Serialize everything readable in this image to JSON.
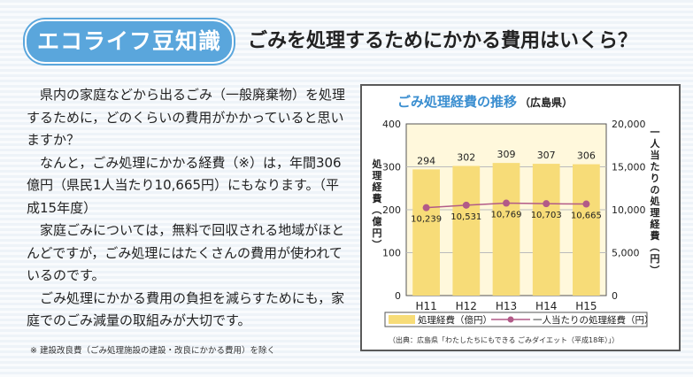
{
  "badge": "エコライフ豆知識",
  "headline": "ごみを処理するためにかかる費用はいくら？",
  "paragraphs": [
    "県内の家庭などから出るごみ（一般廃棄物）を処理するために，どのくらいの費用がかかっていると思いますか？",
    "なんと，ごみ処理にかかる経費（※）は，年間306億円（県民1人当たり10,665円）にもなります。（平成15年度）",
    "家庭ごみについては，無料で回収される地域がほとんどですが，ごみ処理にはたくさんの費用が使われているのです。",
    "ごみ処理にかかる費用の負担を減らすためにも，家庭でのごみ減量の取組みが大切です。"
  ],
  "footnote": "※ 建設改良費（ごみ処理施設の建設・改良にかかる費用）を除く",
  "colors": {
    "accent": "#5aa6dc",
    "bar": "#f7dc78",
    "line": "#b25a88",
    "plot_bg": "#fff8dc",
    "title": "#3a8ed0"
  },
  "chart_data": {
    "type": "bar",
    "title": "ごみ処理経費の推移",
    "subtitle": "（広島県）",
    "categories": [
      "H11",
      "H12",
      "H13",
      "H14",
      "H15"
    ],
    "ylabel_left": "処理経費（億円）",
    "ylabel_right": "一人当たりの処理経費（円）",
    "ylim_left": [
      0,
      400
    ],
    "ylim_right": [
      0,
      20000
    ],
    "yticks_left": [
      "0",
      "100",
      "200",
      "300",
      "400"
    ],
    "yticks_right": [
      "0",
      "5,000",
      "10,000",
      "15,000",
      "20,000"
    ],
    "series": [
      {
        "name": "処理経費（億円）",
        "kind": "bar",
        "axis": "left",
        "values": [
          294,
          302,
          309,
          307,
          306
        ],
        "labels": [
          "294",
          "302",
          "309",
          "307",
          "306"
        ]
      },
      {
        "name": "一人当たりの処理経費（円）",
        "kind": "line",
        "axis": "right",
        "values": [
          10239,
          10531,
          10769,
          10703,
          10665
        ],
        "labels": [
          "10,239",
          "10,531",
          "10,769",
          "10,703",
          "10,665"
        ]
      }
    ],
    "grid": true,
    "legend": "bottom",
    "source": "（出典：広島県「わたしたちにもできる ごみダイエット（平成18年）」）"
  }
}
